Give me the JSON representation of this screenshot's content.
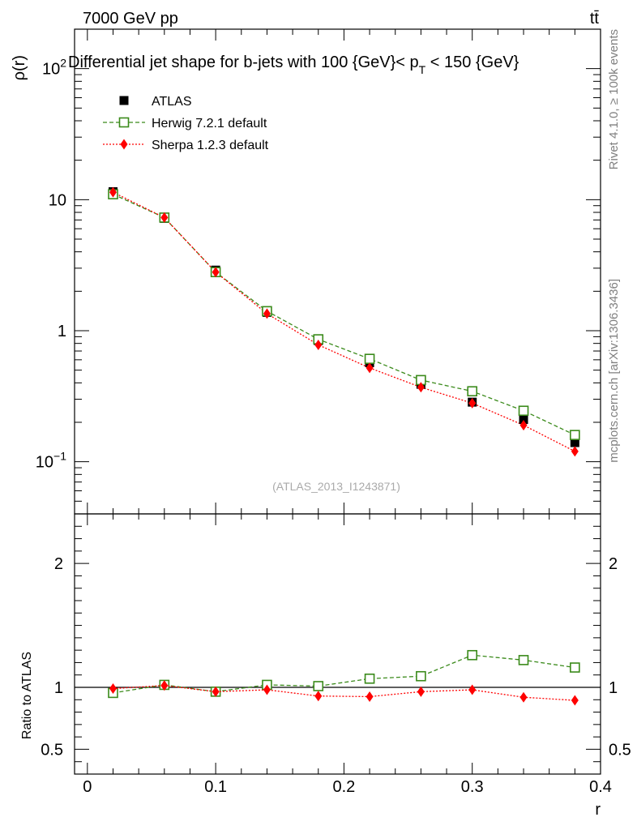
{
  "header": {
    "energy": "7000 GeV pp",
    "process": "tt̄"
  },
  "side": {
    "rivet": "Rivet 4.1.0, ≥ 100k events",
    "source": "mcplots.cern.ch [arXiv:1306.3436]"
  },
  "chart_data": {
    "type": "line",
    "title": "Differential jet shape for b-jets with 100 {GeV}< p_T < 150 {GeV}",
    "title_parts": {
      "pre": "Differential jet shape for b-jets with 100 {GeV}< p",
      "sub": "T",
      "post": " < 150 {GeV}"
    },
    "ylabel": "ρ(r)",
    "xlabel": "r",
    "ratio_ylabel": "Ratio to ATLAS",
    "watermark": "(ATLAS_2013_I1243871)",
    "xlim": [
      -0.01,
      0.4
    ],
    "ylim": [
      0.04,
      200
    ],
    "yscale": "log",
    "ratio_ylim": [
      0.3,
      2.4
    ],
    "x_ticks": [
      "0",
      "0.1",
      "0.2",
      "0.3",
      "0.4"
    ],
    "x_tick_values": [
      0,
      0.1,
      0.2,
      0.3,
      0.4
    ],
    "y_ticks": [
      {
        "value": 0.1,
        "base": "10",
        "exp": "−1"
      },
      {
        "value": 1,
        "base": "1",
        "exp": ""
      },
      {
        "value": 10,
        "base": "10",
        "exp": ""
      },
      {
        "value": 100,
        "base": "10",
        "exp": "2"
      }
    ],
    "ratio_ticks": [
      {
        "value": 0.5,
        "label": "0.5"
      },
      {
        "value": 1,
        "label": "1"
      },
      {
        "value": 2,
        "label": "2"
      }
    ],
    "x": [
      0.02,
      0.06,
      0.1,
      0.14,
      0.18,
      0.22,
      0.26,
      0.3,
      0.34,
      0.38
    ],
    "legend_position": "top-left",
    "series": [
      {
        "name": "ATLAS",
        "color": "#000000",
        "marker": "square-filled",
        "values": [
          11.5,
          7.2,
          2.9,
          1.38,
          0.84,
          0.57,
          0.39,
          0.285,
          0.21,
          0.14
        ]
      },
      {
        "name": "Herwig 7.2.1 default",
        "color": "#3a8a1a",
        "marker": "square-open",
        "line": "dashed",
        "values": [
          11.0,
          7.3,
          2.8,
          1.41,
          0.86,
          0.61,
          0.42,
          0.345,
          0.245,
          0.16
        ]
      },
      {
        "name": "Sherpa 1.2.3 default",
        "color": "#ff0000",
        "marker": "diamond-filled",
        "line": "dotted",
        "values": [
          11.4,
          7.3,
          2.8,
          1.35,
          0.78,
          0.52,
          0.37,
          0.28,
          0.19,
          0.12
        ]
      }
    ],
    "ratio_series": [
      {
        "name": "Herwig 7.2.1 default",
        "values": [
          0.955,
          1.02,
          0.965,
          1.02,
          1.01,
          1.07,
          1.09,
          1.26,
          1.22,
          1.16
        ]
      },
      {
        "name": "Sherpa 1.2.3 default",
        "values": [
          0.99,
          1.015,
          0.965,
          0.98,
          0.93,
          0.925,
          0.965,
          0.98,
          0.92,
          0.895
        ]
      }
    ]
  }
}
